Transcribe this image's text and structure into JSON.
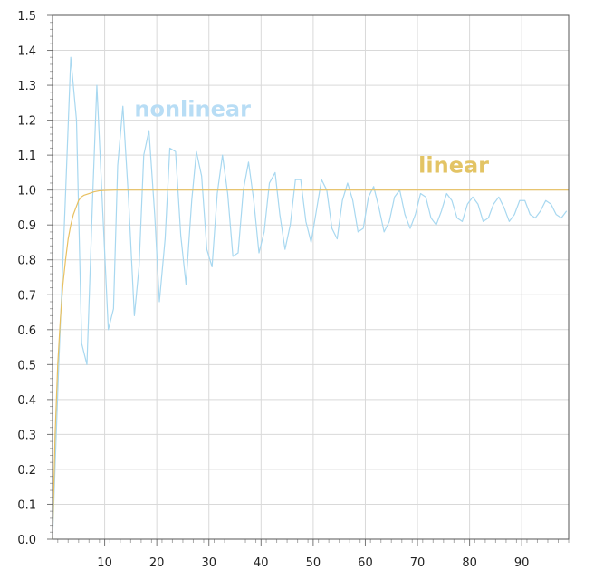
{
  "chart_data": {
    "type": "line",
    "grid": true,
    "xlim": [
      0,
      99
    ],
    "ylim": [
      0,
      1.5
    ],
    "x_ticks": [
      10,
      20,
      30,
      40,
      50,
      60,
      70,
      80,
      90
    ],
    "x_tick_labels": [
      "10",
      "20",
      "30",
      "40",
      "50",
      "60",
      "70",
      "80",
      "90"
    ],
    "y_ticks": [
      0,
      0.1,
      0.2,
      0.3,
      0.4,
      0.5,
      0.6,
      0.7,
      0.8,
      0.9,
      1.0,
      1.1,
      1.2,
      1.3,
      1.4,
      1.5
    ],
    "y_tick_labels": [
      "0.0",
      "0.1",
      "0.2",
      "0.3",
      "0.4",
      "0.5",
      "0.6",
      "0.7",
      "0.8",
      "0.9",
      "1.0",
      "1.1",
      "1.2",
      "1.3",
      "1.4",
      "1.5"
    ],
    "series": [
      {
        "name": "nonlinear",
        "color": "#a8d8f0",
        "points": [
          [
            0,
            0.0
          ],
          [
            1.2,
            0.5
          ],
          [
            2.4,
            0.95
          ],
          [
            3.5,
            1.38
          ],
          [
            4.6,
            1.2
          ],
          [
            5.6,
            0.56
          ],
          [
            6.6,
            0.5
          ],
          [
            7.7,
            0.98
          ],
          [
            8.5,
            1.3
          ],
          [
            9.6,
            0.95
          ],
          [
            10.7,
            0.6
          ],
          [
            11.7,
            0.66
          ],
          [
            12.5,
            1.07
          ],
          [
            13.5,
            1.24
          ],
          [
            14.6,
            0.97
          ],
          [
            15.7,
            0.64
          ],
          [
            16.6,
            0.78
          ],
          [
            17.5,
            1.1
          ],
          [
            18.5,
            1.17
          ],
          [
            19.6,
            0.93
          ],
          [
            20.5,
            0.68
          ],
          [
            21.6,
            0.86
          ],
          [
            22.5,
            1.12
          ],
          [
            23.6,
            1.11
          ],
          [
            24.6,
            0.87
          ],
          [
            25.6,
            0.73
          ],
          [
            26.7,
            0.97
          ],
          [
            27.6,
            1.11
          ],
          [
            28.6,
            1.04
          ],
          [
            29.6,
            0.83
          ],
          [
            30.6,
            0.78
          ],
          [
            31.6,
            0.99
          ],
          [
            32.6,
            1.1
          ],
          [
            33.6,
            0.99
          ],
          [
            34.6,
            0.81
          ],
          [
            35.6,
            0.82
          ],
          [
            36.6,
            1.0
          ],
          [
            37.6,
            1.08
          ],
          [
            38.6,
            0.97
          ],
          [
            39.6,
            0.82
          ],
          [
            40.6,
            0.88
          ],
          [
            41.6,
            1.02
          ],
          [
            42.7,
            1.05
          ],
          [
            43.6,
            0.93
          ],
          [
            44.6,
            0.83
          ],
          [
            45.6,
            0.9
          ],
          [
            46.6,
            1.03
          ],
          [
            47.6,
            1.03
          ],
          [
            48.6,
            0.91
          ],
          [
            49.6,
            0.85
          ],
          [
            50.6,
            0.94
          ],
          [
            51.6,
            1.03
          ],
          [
            52.6,
            1.0
          ],
          [
            53.6,
            0.89
          ],
          [
            54.6,
            0.86
          ],
          [
            55.6,
            0.97
          ],
          [
            56.6,
            1.02
          ],
          [
            57.6,
            0.97
          ],
          [
            58.6,
            0.88
          ],
          [
            59.6,
            0.89
          ],
          [
            60.6,
            0.98
          ],
          [
            61.6,
            1.01
          ],
          [
            62.6,
            0.95
          ],
          [
            63.6,
            0.88
          ],
          [
            64.6,
            0.91
          ],
          [
            65.6,
            0.98
          ],
          [
            66.6,
            1.0
          ],
          [
            67.6,
            0.93
          ],
          [
            68.6,
            0.89
          ],
          [
            69.6,
            0.93
          ],
          [
            70.6,
            0.99
          ],
          [
            71.6,
            0.98
          ],
          [
            72.6,
            0.92
          ],
          [
            73.6,
            0.9
          ],
          [
            74.6,
            0.94
          ],
          [
            75.6,
            0.99
          ],
          [
            76.6,
            0.97
          ],
          [
            77.6,
            0.92
          ],
          [
            78.6,
            0.91
          ],
          [
            79.6,
            0.96
          ],
          [
            80.6,
            0.98
          ],
          [
            81.6,
            0.96
          ],
          [
            82.6,
            0.91
          ],
          [
            83.6,
            0.92
          ],
          [
            84.6,
            0.96
          ],
          [
            85.6,
            0.98
          ],
          [
            86.6,
            0.95
          ],
          [
            87.6,
            0.91
          ],
          [
            88.6,
            0.93
          ],
          [
            89.6,
            0.97
          ],
          [
            90.6,
            0.97
          ],
          [
            91.6,
            0.93
          ],
          [
            92.6,
            0.92
          ],
          [
            93.6,
            0.94
          ],
          [
            94.6,
            0.97
          ],
          [
            95.6,
            0.96
          ],
          [
            96.6,
            0.93
          ],
          [
            97.6,
            0.92
          ],
          [
            98.6,
            0.94
          ]
        ]
      },
      {
        "name": "linear",
        "color": "#e8c060",
        "points": [
          [
            0,
            0.0
          ],
          [
            0.5,
            0.3
          ],
          [
            1.0,
            0.5
          ],
          [
            1.5,
            0.63
          ],
          [
            2.0,
            0.73
          ],
          [
            2.5,
            0.8
          ],
          [
            3.0,
            0.86
          ],
          [
            3.5,
            0.9
          ],
          [
            4.0,
            0.93
          ],
          [
            4.5,
            0.95
          ],
          [
            5.0,
            0.97
          ],
          [
            5.5,
            0.98
          ],
          [
            6.0,
            0.985
          ],
          [
            7.0,
            0.99
          ],
          [
            8.0,
            0.995
          ],
          [
            9.0,
            0.998
          ],
          [
            10.0,
            0.999
          ],
          [
            12.0,
            1.0
          ],
          [
            20.0,
            1.0
          ],
          [
            40.0,
            1.0
          ],
          [
            60.0,
            1.0
          ],
          [
            80.0,
            1.0
          ],
          [
            99.0,
            1.0
          ]
        ]
      }
    ],
    "annotations": [
      {
        "text": "nonlinear",
        "x": 15.7,
        "y": 1.21,
        "color": "#b8ddf5"
      },
      {
        "text": "linear",
        "x": 70.2,
        "y": 1.05,
        "color": "#e3c465"
      }
    ]
  }
}
